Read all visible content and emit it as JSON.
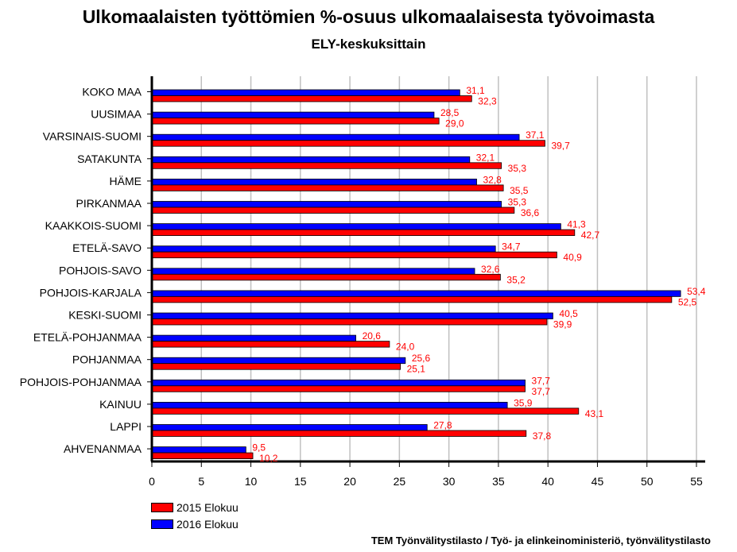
{
  "title": "Ulkomaalaisten työttömien %-osuus ulkomaalaisesta työvoimasta",
  "subtitle": "ELY-keskuksittain",
  "source": "TEM Työnvälitystilasto / Työ- ja elinkeinoministeriö, työnvälitystilasto",
  "legend": [
    {
      "label": "2015 Elokuu",
      "color": "#ff0000"
    },
    {
      "label": "2016 Elokuu",
      "color": "#0000ff"
    }
  ],
  "chart_data": {
    "type": "bar",
    "orientation": "horizontal",
    "categories": [
      "KOKO MAA",
      "UUSIMAA",
      "VARSINAIS-SUOMI",
      "SATAKUNTA",
      "HÄME",
      "PIRKANMAA",
      "KAAKKOIS-SUOMI",
      "ETELÄ-SAVO",
      "POHJOIS-SAVO",
      "POHJOIS-KARJALA",
      "KESKI-SUOMI",
      "ETELÄ-POHJANMAA",
      "POHJANMAA",
      "POHJOIS-POHJANMAA",
      "KAINUU",
      "LAPPI",
      "AHVENANMAA"
    ],
    "series": [
      {
        "name": "2016 Elokuu",
        "color": "#0000ff",
        "values": [
          31.1,
          28.5,
          37.1,
          32.1,
          32.8,
          35.3,
          41.3,
          34.7,
          32.6,
          53.4,
          40.5,
          20.6,
          25.6,
          37.7,
          35.9,
          27.8,
          9.5
        ],
        "labels": [
          "31,1",
          "28,5",
          "37,1",
          "32,1",
          "32,8",
          "35,3",
          "41,3",
          "34,7",
          "32,6",
          "53,4",
          "40,5",
          "20,6",
          "25,6",
          "37,7",
          "35,9",
          "27,8",
          "9,5"
        ]
      },
      {
        "name": "2015 Elokuu",
        "color": "#ff0000",
        "values": [
          32.3,
          29.0,
          39.7,
          35.3,
          35.5,
          36.6,
          42.7,
          40.9,
          35.2,
          52.5,
          39.9,
          24.0,
          25.1,
          37.7,
          43.1,
          37.8,
          10.2
        ],
        "labels": [
          "32,3",
          "29,0",
          "39,7",
          "35,3",
          "35,5",
          "36,6",
          "42,7",
          "40,9",
          "35,2",
          "52,5",
          "39,9",
          "24,0",
          "25,1",
          "37,7",
          "43,1",
          "37,8",
          "10,2"
        ]
      }
    ],
    "xlim": [
      0,
      55
    ],
    "xticks": [
      0,
      5,
      10,
      15,
      20,
      25,
      30,
      35,
      40,
      45,
      50,
      55
    ],
    "grid": true,
    "legend_position": "bottom-left"
  }
}
